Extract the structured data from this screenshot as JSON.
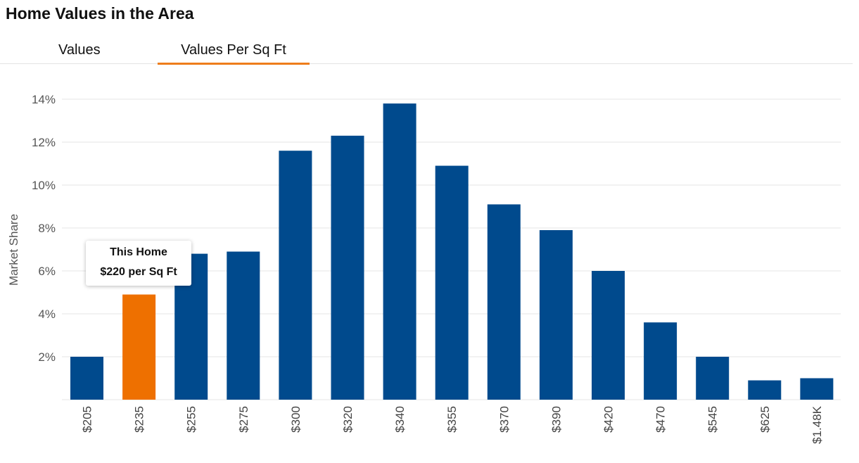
{
  "header": {
    "title": "Home Values in the Area"
  },
  "tabs": [
    {
      "label": "Values",
      "active": false
    },
    {
      "label": "Values Per Sq Ft",
      "active": true
    }
  ],
  "tooltip": {
    "line1": "This Home",
    "line2": "$220 per Sq Ft"
  },
  "colors": {
    "bar": "#004a8d",
    "highlight": "#ee7000",
    "tab_underline": "#ee7d1b"
  },
  "chart_data": {
    "type": "bar",
    "categories": [
      "$205",
      "$235",
      "$255",
      "$275",
      "$300",
      "$320",
      "$340",
      "$355",
      "$370",
      "$390",
      "$420",
      "$470",
      "$545",
      "$625",
      "$1.48K"
    ],
    "values": [
      2.0,
      4.9,
      6.8,
      6.9,
      11.6,
      12.3,
      13.8,
      10.9,
      9.1,
      7.9,
      6.0,
      3.6,
      2.0,
      0.9,
      1.0
    ],
    "highlight_category": "$235",
    "ylabel": "Market Share",
    "yticks": [
      "2%",
      "4%",
      "6%",
      "8%",
      "10%",
      "12%",
      "14%"
    ],
    "ylim": [
      0,
      14
    ],
    "grid": true
  }
}
